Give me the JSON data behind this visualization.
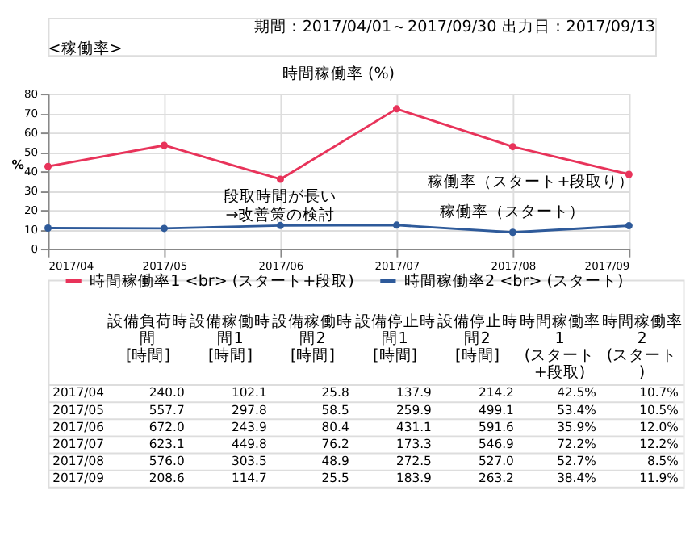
{
  "chart_data": [
    {
      "type": "line",
      "title": "時間稼働率 (%)",
      "subtitle": "<稼働率>",
      "ylabel": "%",
      "categories": [
        "2017/04",
        "2017/05",
        "2017/06",
        "2017/07",
        "2017/08",
        "2017/09"
      ],
      "series": [
        {
          "name": "時間稼働率1 <br> (スタート+段取)",
          "color": "#e8335a",
          "values": [
            42.5,
            53.4,
            35.9,
            72.2,
            52.7,
            38.4
          ]
        },
        {
          "name": "時間稼働率2 <br> (スタート)",
          "color": "#2e5a9a",
          "values": [
            10.7,
            10.5,
            12.0,
            12.2,
            8.5,
            11.9
          ]
        }
      ],
      "ylim": [
        0,
        80
      ],
      "yticks": [
        0,
        10,
        20,
        30,
        40,
        50,
        60,
        70,
        80
      ],
      "grid": true,
      "legend": "bottom",
      "marker": "circle",
      "annotations": [
        "期間：2017/04/01～2017/09/30",
        "出力日：2017/09/13",
        "段取時間が長い\n→改善策の検討",
        "稼働率（スタート+段取り）",
        "稼働率（スタート）"
      ]
    },
    {
      "type": "other",
      "categories": [
        "2017/04",
        "2017/05",
        "2017/06",
        "2017/07",
        "2017/08",
        "2017/09"
      ],
      "data_labels": true,
      "series": [
        {
          "name": "設備負荷時間 [時間]",
          "values": [
            240.0,
            557.7,
            672.0,
            623.1,
            576.0,
            208.6
          ],
          "value_labels": [
            "240.0",
            "557.7",
            "672.0",
            "623.1",
            "576.0",
            "208.6"
          ]
        },
        {
          "name": "設備稼働時間1 [時間]",
          "values": [
            102.1,
            297.8,
            243.9,
            449.8,
            303.5,
            114.7
          ],
          "value_labels": [
            "102.1",
            "297.8",
            "243.9",
            "449.8",
            "303.5",
            "114.7"
          ]
        },
        {
          "name": "設備稼働時間2 [時間]",
          "values": [
            25.8,
            58.5,
            80.4,
            76.2,
            48.9,
            25.5
          ],
          "value_labels": [
            "25.8",
            "58.5",
            "80.4",
            "76.2",
            "48.9",
            "25.5"
          ]
        },
        {
          "name": "設備停止時間1 [時間]",
          "values": [
            137.9,
            259.9,
            431.1,
            173.3,
            272.5,
            183.9
          ],
          "value_labels": [
            "137.9",
            "259.9",
            "431.1",
            "173.3",
            "272.5",
            "183.9"
          ]
        },
        {
          "name": "設備停止時間2 [時間]",
          "values": [
            214.2,
            499.1,
            591.6,
            546.9,
            527.0,
            263.2
          ],
          "value_labels": [
            "214.2",
            "499.1",
            "591.6",
            "546.9",
            "527.0",
            "263.2"
          ]
        },
        {
          "name": "時間稼働率1 (スタート+段取)",
          "values": [
            42.5,
            53.4,
            35.9,
            72.2,
            52.7,
            38.4
          ],
          "value_labels": [
            "42.5%",
            "53.4%",
            "35.9%",
            "72.2%",
            "52.7%",
            "38.4%"
          ]
        },
        {
          "name": "時間稼働率2 (スタート)",
          "values": [
            10.7,
            10.5,
            12.0,
            12.2,
            8.5,
            11.9
          ],
          "value_labels": [
            "10.7%",
            "10.5%",
            "12.0%",
            "12.2%",
            "8.5%",
            "11.9%"
          ]
        }
      ]
    }
  ]
}
